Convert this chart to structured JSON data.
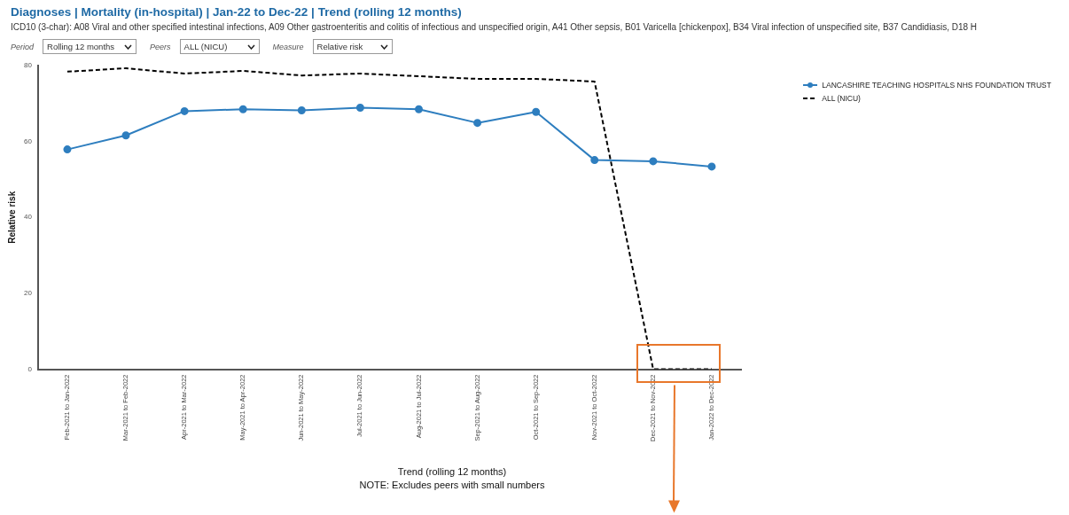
{
  "chart_data": {
    "type": "line",
    "title": "Diagnoses | Mortality (in-hospital) | Jan-22 to Dec-22 | Trend (rolling 12 months)",
    "subtitle": "ICD10 (3-char): A08 Viral and other specified intestinal infections, A09 Other gastroenteritis and colitis of infectious and unspecified origin, A41 Other sepsis, B01 Varicella [chickenpox], B34 Viral infection of unspecified site, B37 Candidiasis, D18 H",
    "annotations": [
      "Period",
      "Rolling 12 months",
      "Peers",
      "ALL (NICU)",
      "Measure",
      "Relative risk",
      "NOTE: Excludes peers with small numbers"
    ],
    "xlabel": "Trend (rolling 12 months)",
    "ylabel": "Relative risk",
    "categories": [
      "Feb-2021 to Jan-2022",
      "Mar-2021 to Feb-2022",
      "Apr-2021 to Mar-2022",
      "May-2021 to Apr-2022",
      "Jun-2021 to May-2022",
      "Jul-2021 to Jun-2022",
      "Aug-2021 to Jul-2022",
      "Sep-2021 to Aug-2022",
      "Oct-2021 to Sep-2022",
      "Nov-2021 to Oct-2022",
      "Dec-2021 to Nov-2022",
      "Jan-2022 to Dec-2022"
    ],
    "series": [
      {
        "name": "LANCASHIRE TEACHING HOSPITALS NHS FOUNDATION TRUST",
        "color": "#2e7ebf",
        "marker": "circle",
        "line_style": "solid",
        "values": [
          57.9,
          61.6,
          68,
          68.5,
          68.2,
          68.9,
          68.5,
          64.9,
          67.8,
          55.1,
          54.8,
          53.4
        ]
      },
      {
        "name": "ALL (NICU)",
        "color": "#000000",
        "marker": "none",
        "line_style": "dashed",
        "values": [
          78.4,
          79.3,
          77.9,
          78.6,
          77.4,
          77.9,
          77.2,
          76.5,
          76.5,
          75.8,
          0,
          0
        ]
      }
    ],
    "ylim": [
      0,
      80
    ],
    "yticks": [
      0,
      20,
      40,
      60,
      80
    ],
    "grid": false,
    "legend": "top right"
  }
}
